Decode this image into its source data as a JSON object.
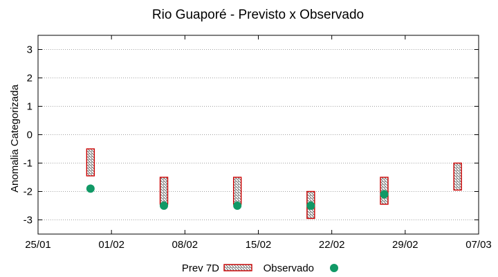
{
  "colors": {
    "forecast": "#cc0000",
    "observed": "#119966",
    "grid": "#a0a0a0"
  },
  "chart_data": {
    "type": "range-bar-with-points",
    "title": "Rio Guaporé - Previsto x Observado",
    "xlabel": "",
    "ylabel": "Anomalia Categorizada",
    "xlim": [
      0,
      42
    ],
    "ylim": [
      -3.5,
      3.5
    ],
    "x_ticks": [
      {
        "x": 0,
        "label": "25/01"
      },
      {
        "x": 7,
        "label": "01/02"
      },
      {
        "x": 14,
        "label": "08/02"
      },
      {
        "x": 21,
        "label": "15/02"
      },
      {
        "x": 28,
        "label": "22/02"
      },
      {
        "x": 35,
        "label": "29/02"
      },
      {
        "x": 42,
        "label": "07/03"
      }
    ],
    "y_ticks": [
      {
        "y": 3,
        "label": "3"
      },
      {
        "y": 2,
        "label": "2"
      },
      {
        "y": 1,
        "label": "1"
      },
      {
        "y": 0,
        "label": "0"
      },
      {
        "y": -1,
        "label": "-1"
      },
      {
        "y": -2,
        "label": "-2"
      },
      {
        "y": -3,
        "label": "-3"
      }
    ],
    "grid": true,
    "legend": {
      "position": "bottom-center"
    },
    "series": [
      {
        "name": "Prev 7D",
        "kind": "range",
        "points": [
          {
            "x": 5,
            "low": -1.45,
            "high": -0.5
          },
          {
            "x": 12,
            "low": -2.45,
            "high": -1.5
          },
          {
            "x": 19,
            "low": -2.45,
            "high": -1.5
          },
          {
            "x": 26,
            "low": -2.95,
            "high": -2.0
          },
          {
            "x": 33,
            "low": -2.45,
            "high": -1.5
          },
          {
            "x": 40,
            "low": -1.95,
            "high": -1.0
          }
        ]
      },
      {
        "name": "Observado",
        "kind": "point",
        "points": [
          {
            "x": 5,
            "y": -1.9
          },
          {
            "x": 12,
            "y": -2.5
          },
          {
            "x": 19,
            "y": -2.5
          },
          {
            "x": 26,
            "y": -2.5
          },
          {
            "x": 33,
            "y": -2.1
          }
        ]
      }
    ]
  }
}
